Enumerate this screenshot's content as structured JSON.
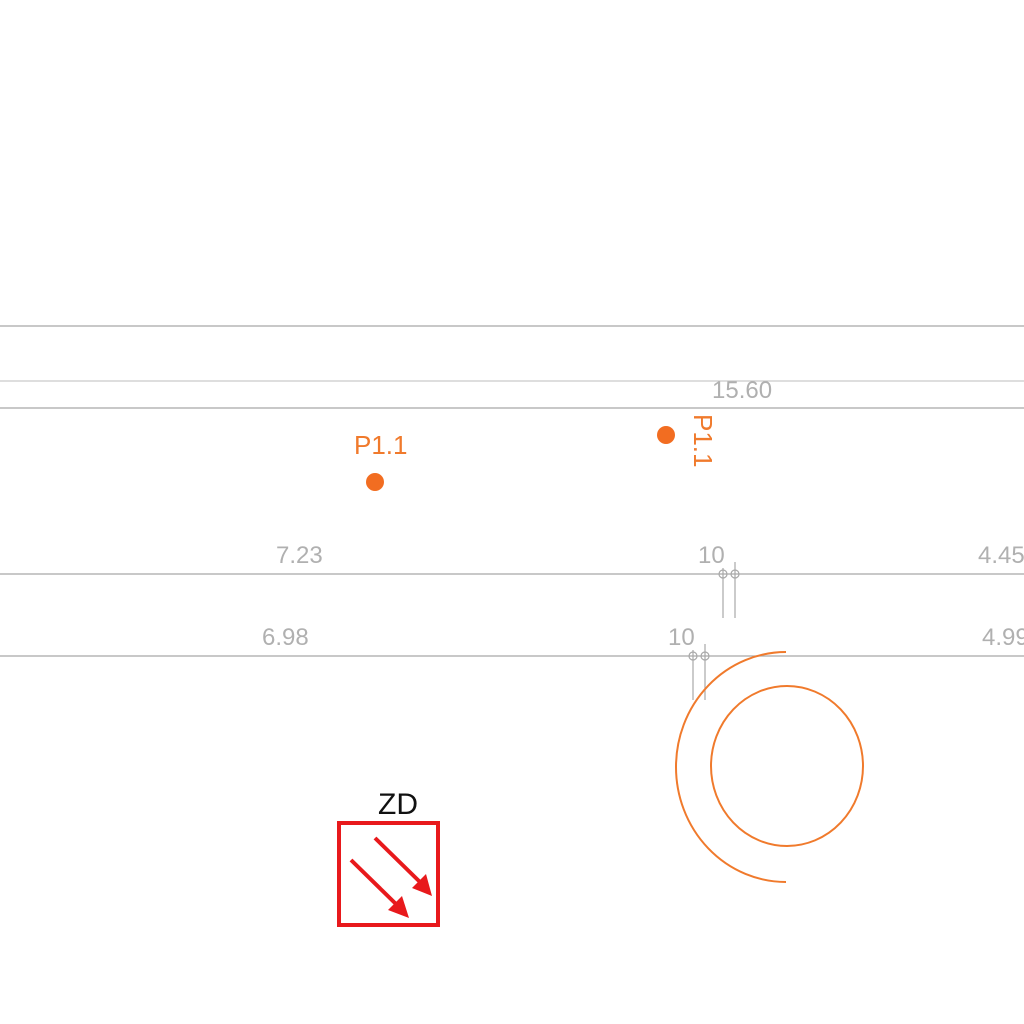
{
  "colors": {
    "line": "#a8a8a8",
    "dim_text": "#b0b0b0",
    "point": "#f26d21",
    "arc": "#f07a2c",
    "zd": "#e8191c"
  },
  "dimensions": {
    "top": "15.60",
    "upper_left": "7.23",
    "upper_mid": "10",
    "upper_right": "4.45",
    "lower_left": "6.98",
    "lower_mid": "10",
    "lower_right": "4.99"
  },
  "points": [
    {
      "label": "P1.1"
    },
    {
      "label": "P1.1"
    }
  ],
  "symbol": {
    "label": "ZD",
    "icon": "diagonal-arrows-icon"
  }
}
